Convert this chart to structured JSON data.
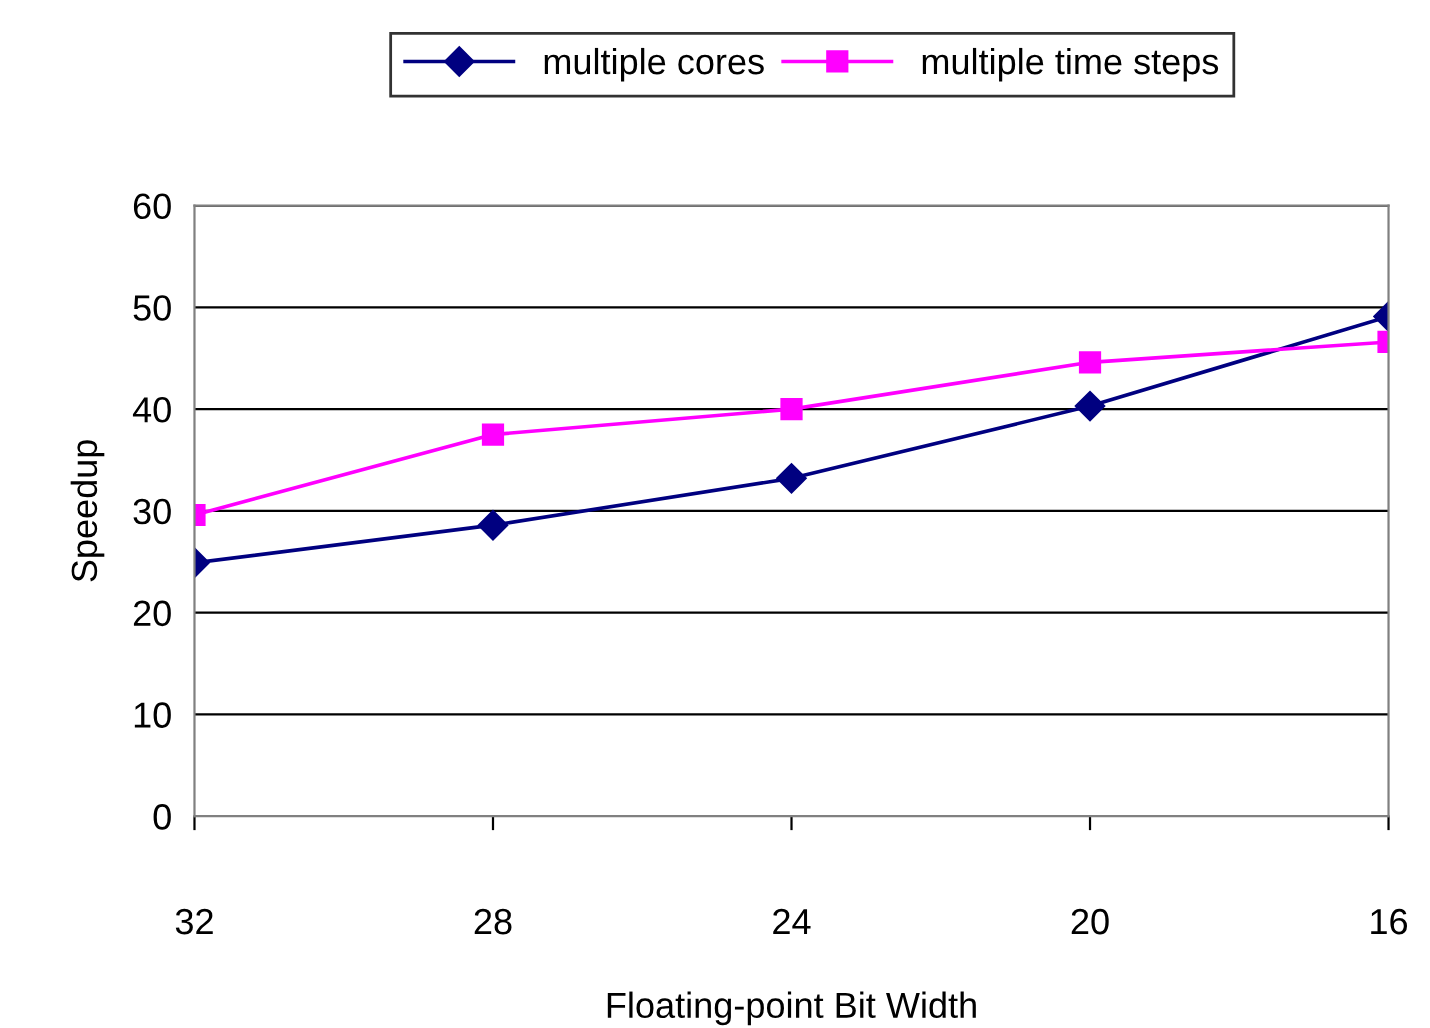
{
  "chart_data": {
    "type": "line",
    "xlabel": "Floating-point Bit Width",
    "ylabel": "Speedup",
    "x": [
      32,
      28,
      24,
      20,
      16
    ],
    "series": [
      {
        "name": "multiple cores",
        "color": "#000080",
        "marker": "diamond",
        "values": [
          24.9,
          28.6,
          33.2,
          40.3,
          49.1
        ]
      },
      {
        "name": "multiple time steps",
        "color": "#ff00ff",
        "marker": "square",
        "values": [
          29.6,
          37.5,
          40.0,
          44.6,
          46.6
        ]
      }
    ],
    "xlim": [
      32,
      16
    ],
    "xticks": [
      32,
      28,
      24,
      20,
      16
    ],
    "ylim": [
      0,
      60
    ],
    "yticks": [
      0,
      10,
      20,
      30,
      40,
      50,
      60
    ],
    "grid": "y",
    "legend": "top",
    "line_style": "solid"
  }
}
